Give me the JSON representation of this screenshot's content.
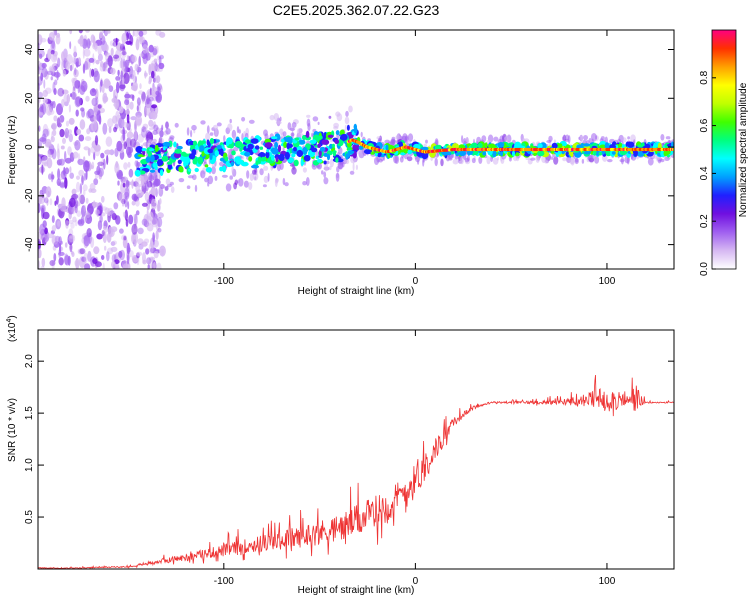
{
  "title": "C2E5.2025.362.07.22.G23",
  "chart_data": [
    {
      "type": "heatmap",
      "name": "spectrogram",
      "xlabel": "Height of straight line (km)",
      "ylabel": "Frequency (Hz)",
      "xlim": [
        -197,
        135
      ],
      "ylim": [
        -50,
        48
      ],
      "xticks": [
        -100,
        0,
        100
      ],
      "xtick_labels": [
        "-100",
        "0",
        "100"
      ],
      "yticks": [
        -40,
        -20,
        0,
        20,
        40
      ],
      "ytick_labels": [
        "-40",
        "-20",
        "0",
        "20",
        "40"
      ],
      "signal_trace": {
        "x": [
          -145,
          -120,
          -100,
          -80,
          -60,
          -40,
          -33,
          -30,
          -25,
          -20,
          -15,
          -10,
          -5,
          0,
          5,
          20,
          50,
          80,
          100,
          120,
          135
        ],
        "y": [
          -5,
          -4,
          -3,
          -2,
          -1,
          0,
          3,
          2,
          0,
          -1,
          -2,
          -1,
          0,
          -1,
          -2,
          -1,
          -1,
          -1,
          -1,
          -1,
          -1
        ]
      },
      "colorbar": {
        "label": "Normalized spectral amplitude",
        "range": [
          0.0,
          1.0
        ],
        "ticks": [
          0.0,
          0.2,
          0.4,
          0.6,
          0.8
        ],
        "tick_labels": [
          "0.0",
          "0.2",
          "0.4",
          "0.6",
          "0.8"
        ],
        "colors": [
          "#ffffff",
          "#d6b8f2",
          "#a060f0",
          "#7010e0",
          "#2020ff",
          "#00a0ff",
          "#00ffff",
          "#00ff80",
          "#40ff00",
          "#c0ff00",
          "#ffff00",
          "#ffa000",
          "#ff3000",
          "#ff0080"
        ]
      }
    },
    {
      "type": "line",
      "name": "snr",
      "xlabel": "Height of straight line (km)",
      "ylabel": "SNR (10 * v/v)",
      "y_multiplier": "(x10",
      "y_multiplier_exp": "4",
      "y_multiplier_close": ")",
      "xlim": [
        -197,
        135
      ],
      "ylim": [
        0,
        2.3
      ],
      "xticks": [
        -100,
        0,
        100
      ],
      "xtick_labels": [
        "-100",
        "0",
        "100"
      ],
      "yticks": [
        0.5,
        1.0,
        1.5,
        2.0
      ],
      "ytick_labels": [
        "0.5",
        "1.0",
        "1.5",
        "2.0"
      ],
      "color": "#ee3333",
      "envelope": {
        "x": [
          -197,
          -150,
          -140,
          -120,
          -100,
          -80,
          -60,
          -40,
          -20,
          -10,
          0,
          10,
          20,
          30,
          40,
          60,
          80,
          90,
          100,
          110,
          115,
          120,
          135
        ],
        "base": [
          0.0,
          0.02,
          0.05,
          0.1,
          0.16,
          0.22,
          0.28,
          0.35,
          0.5,
          0.6,
          0.8,
          1.1,
          1.4,
          1.55,
          1.6,
          1.6,
          1.6,
          1.6,
          1.6,
          1.6,
          1.6,
          1.6,
          1.6
        ],
        "amp": [
          0.01,
          0.02,
          0.05,
          0.12,
          0.2,
          0.28,
          0.35,
          0.45,
          0.55,
          0.6,
          0.55,
          0.4,
          0.15,
          0.05,
          0.03,
          0.05,
          0.1,
          0.25,
          0.45,
          0.15,
          0.5,
          0.02,
          0.02
        ]
      }
    }
  ]
}
